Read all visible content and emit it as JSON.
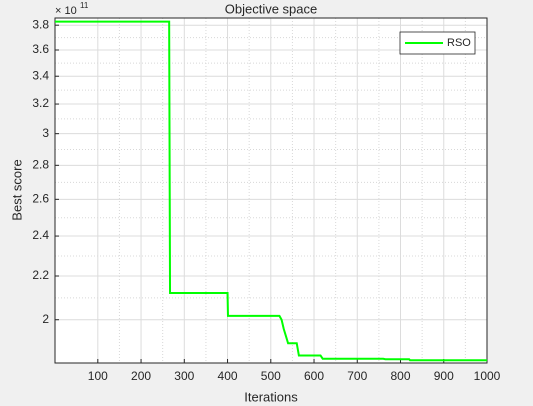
{
  "chart_data": {
    "type": "line",
    "title": "Objective space",
    "x_label": "Iterations",
    "y_label": "Best score",
    "y_exponent_base": "× 10",
    "y_exponent": "11",
    "x": [
      1,
      265,
      267,
      400,
      401,
      520,
      525,
      530,
      535,
      540,
      560,
      565,
      615,
      620,
      760,
      765,
      820,
      822,
      1000
    ],
    "series": [
      {
        "name": "RSO",
        "color": "#00ff00",
        "values": [
          3.83,
          3.83,
          2.12,
          2.12,
          2.017,
          2.017,
          2.0,
          1.96,
          1.93,
          1.9,
          1.9,
          1.85,
          1.85,
          1.837,
          1.837,
          1.835,
          1.835,
          1.831,
          1.831
        ]
      }
    ],
    "xlim": [
      1,
      1000
    ],
    "xticks": [
      100,
      200,
      300,
      400,
      500,
      600,
      700,
      800,
      900,
      1000
    ],
    "ylim": [
      1.82,
      3.86
    ],
    "yticks": [
      2,
      2.2,
      2.4,
      2.6,
      2.8,
      3,
      3.2,
      3.4,
      3.6,
      3.8
    ],
    "y_log": true,
    "grid": true,
    "minor_grid": true,
    "legend": "top-right"
  }
}
